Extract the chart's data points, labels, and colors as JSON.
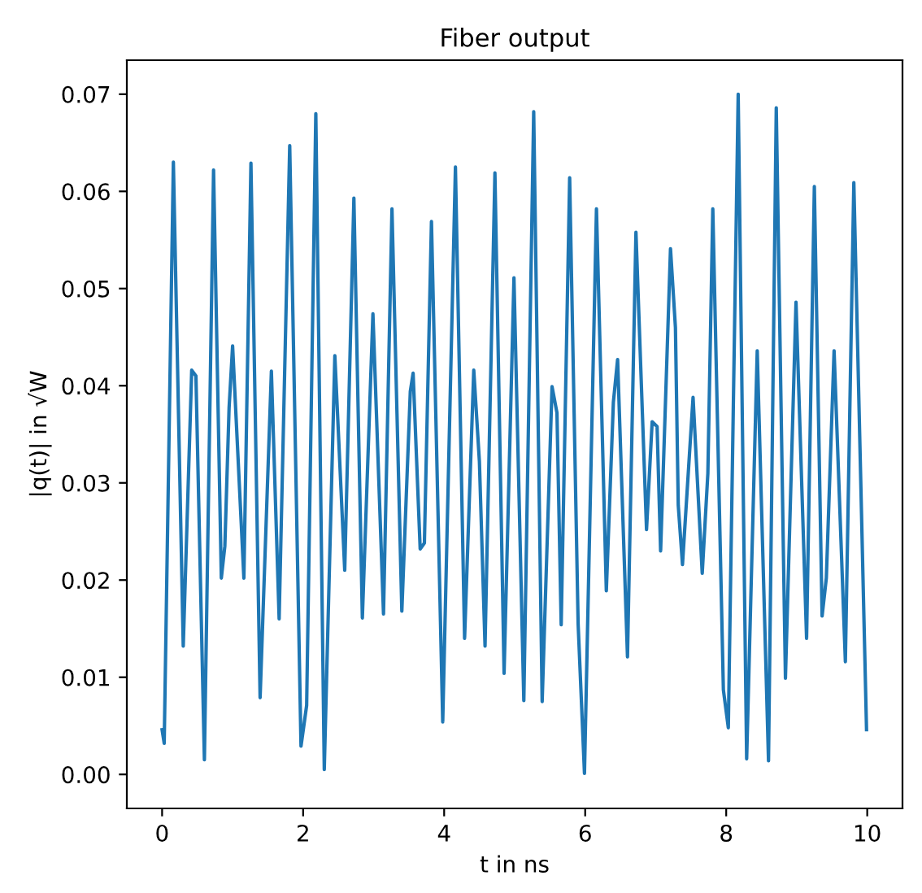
{
  "chart_data": {
    "type": "line",
    "title": "Fiber output",
    "xlabel": "t in ns",
    "ylabel": "|q(t)| in √W",
    "xlim": [
      -0.5,
      10.5
    ],
    "ylim": [
      -0.0035,
      0.0735
    ],
    "xticks": [
      0,
      2,
      4,
      6,
      8,
      10
    ],
    "yticks": [
      {
        "value": 0,
        "label": "0.00"
      },
      {
        "value": 0.01,
        "label": "0.01"
      },
      {
        "value": 0.02,
        "label": "0.02"
      },
      {
        "value": 0.03,
        "label": "0.03"
      },
      {
        "value": 0.04,
        "label": "0.04"
      },
      {
        "value": 0.05,
        "label": "0.05"
      },
      {
        "value": 0.06,
        "label": "0.06"
      },
      {
        "value": 0.07,
        "label": "0.07"
      }
    ],
    "grid": false,
    "series": [
      {
        "color": "#1f77b4",
        "x": [
          0,
          0.03,
          0.16,
          0.3,
          0.42,
          0.48,
          0.6,
          0.73,
          0.84,
          0.89,
          0.95,
          1.0,
          1.16,
          1.26,
          1.39,
          1.55,
          1.66,
          1.81,
          1.97,
          2.05,
          2.18,
          2.3,
          2.45,
          2.59,
          2.72,
          2.84,
          2.99,
          3.14,
          3.26,
          3.4,
          3.52,
          3.56,
          3.66,
          3.72,
          3.82,
          3.98,
          4.16,
          4.29,
          4.42,
          4.5,
          4.58,
          4.72,
          4.85,
          4.99,
          5.13,
          5.27,
          5.39,
          5.53,
          5.6,
          5.66,
          5.78,
          5.9,
          5.99,
          6.16,
          6.3,
          6.4,
          6.46,
          6.6,
          6.72,
          6.87,
          6.95,
          7.02,
          7.07,
          7.21,
          7.28,
          7.32,
          7.38,
          7.53,
          7.66,
          7.74,
          7.81,
          7.96,
          8.03,
          8.17,
          8.29,
          8.44,
          8.6,
          8.71,
          8.84,
          8.99,
          9.14,
          9.25,
          9.36,
          9.42,
          9.53,
          9.69,
          9.81,
          9.99
        ],
        "values": [
          0.0046,
          0.0032,
          0.063,
          0.0132,
          0.0416,
          0.041,
          0.0015,
          0.0622,
          0.0202,
          0.0235,
          0.0377,
          0.0441,
          0.0202,
          0.0629,
          0.0079,
          0.0415,
          0.016,
          0.0647,
          0.0029,
          0.0071,
          0.068,
          0.0005,
          0.0431,
          0.021,
          0.0593,
          0.0161,
          0.0474,
          0.0165,
          0.0582,
          0.0168,
          0.0394,
          0.0413,
          0.0232,
          0.0238,
          0.0569,
          0.0054,
          0.0625,
          0.014,
          0.0416,
          0.0322,
          0.0132,
          0.0619,
          0.0104,
          0.0511,
          0.0076,
          0.0682,
          0.0075,
          0.0399,
          0.0372,
          0.0154,
          0.0614,
          0.0155,
          0.0001,
          0.0582,
          0.0189,
          0.0383,
          0.0427,
          0.0121,
          0.0558,
          0.0252,
          0.0363,
          0.0358,
          0.023,
          0.0541,
          0.046,
          0.0277,
          0.0216,
          0.0388,
          0.0207,
          0.031,
          0.0582,
          0.0087,
          0.0048,
          0.07,
          0.0016,
          0.0436,
          0.0014,
          0.0686,
          0.0099,
          0.0486,
          0.014,
          0.0605,
          0.0163,
          0.0202,
          0.0436,
          0.0116,
          0.0609,
          0.0046
        ]
      }
    ]
  }
}
